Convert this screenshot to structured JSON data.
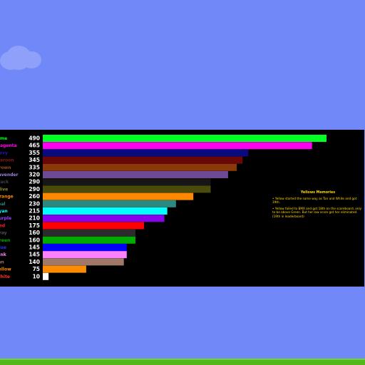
{
  "chart_data": {
    "type": "bar",
    "orientation": "horizontal",
    "xlim": [
      0,
      520
    ],
    "grid": false,
    "categories": [
      "Lime",
      "Magenta",
      "Navy",
      "Maroon",
      "Brown",
      "Lavender",
      "Black",
      "Olive",
      "Orange",
      "Teal",
      "Cyan",
      "Purple",
      "Red",
      "Gray",
      "Green",
      "Blue",
      "Pink",
      "Tan",
      "Yellow",
      "White"
    ],
    "values": [
      490,
      465,
      355,
      345,
      335,
      320,
      290,
      290,
      260,
      230,
      215,
      210,
      175,
      160,
      160,
      145,
      145,
      140,
      75,
      10
    ],
    "colors": [
      "#00ff22",
      "#ff00ee",
      "#0a0a80",
      "#6a0808",
      "#8a3a0a",
      "#6e4a96",
      "#161616",
      "#4a4a0a",
      "#ff8800",
      "#2a8a80",
      "#00ffff",
      "#8800ee",
      "#ff0000",
      "#2c2c2c",
      "#00aa00",
      "#0000ff",
      "#ff80ff",
      "#a07868",
      "#ff8c00",
      "#ffffff"
    ],
    "label_colors": [
      "#00ff22",
      "#ff00ee",
      "#1a1aa8",
      "#8a1818",
      "#9a4a1a",
      "#a080d8",
      "#404040",
      "#8a8a20",
      "#ff8800",
      "#2a8a80",
      "#00ffff",
      "#a040ff",
      "#ff2020",
      "#505050",
      "#00aa00",
      "#3030ff",
      "#ff80ff",
      "#a07868",
      "#ff8c00",
      "#ff3030"
    ],
    "value_labels": [
      "490",
      "465",
      "355",
      "345",
      "335",
      "320",
      "290",
      "290",
      "260",
      "230",
      "215",
      "210",
      "175",
      "160",
      "160",
      "145",
      "145",
      "140",
      "75",
      "10"
    ]
  },
  "notes": {
    "title": "Yellows Memories",
    "items": [
      "• Yellow started the same way as Tan and White and got 19th.",
      "• Yellow failed to BMX and got 18th on the scoreboard, only to be above Green. But her low score got her eliminated. (19th in leaderboard)"
    ]
  }
}
